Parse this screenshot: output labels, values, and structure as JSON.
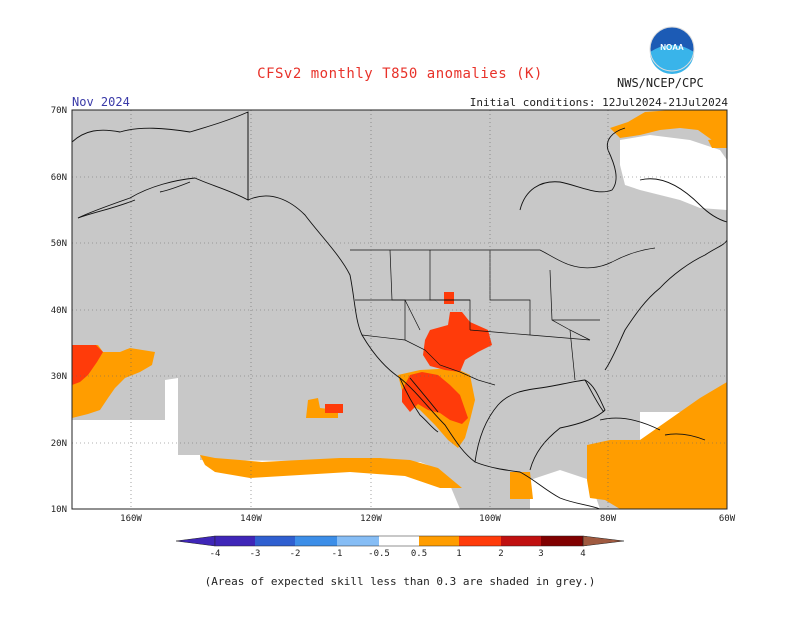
{
  "title": "CFSv2 monthly T850 anomalies (K)",
  "month": "Nov 2024",
  "org": "NWS/NCEP/CPC",
  "initial_conditions": "Initial conditions: 12Jul2024-21Jul2024",
  "logo_text": "NOAA",
  "note": "(Areas of expected skill less than 0.3 are shaded in grey.)",
  "lat_labels": [
    "70N",
    "60N",
    "50N",
    "40N",
    "30N",
    "20N",
    "10N"
  ],
  "lon_labels": [
    "160W",
    "140W",
    "120W",
    "100W",
    "80W",
    "60W"
  ],
  "colorbar_labels": [
    "-4",
    "-3",
    "-2",
    "-1",
    "-0.5",
    "0.5",
    "1",
    "2",
    "3",
    "4"
  ],
  "colors": {
    "low_skill": "#c8c8c8",
    "no_data": "#ffffff",
    "c_-4": "#3f26b8",
    "c_-3": "#2f5fd0",
    "c_-2": "#3c8ee8",
    "c_-1": "#86bdf5",
    "c_-0.5": "#ffffff",
    "c_0.5": "#ff9d00",
    "c_1": "#ff3b0a",
    "c_2": "#c01010",
    "c_3": "#800000",
    "c_4": "#c8a090",
    "c_extra": "#a05a40",
    "title": "#e8322a",
    "month": "#3a3aa8"
  },
  "regions": [
    {
      "name": "warm-0.5-1-pacific-southwest",
      "level": "0.5-1"
    },
    {
      "name": "warm-1-2-southwest-us",
      "level": "1-2"
    },
    {
      "name": "warm-1-2-northern-mexico",
      "level": "1-2"
    },
    {
      "name": "warm-0.5-1-eastern-pacific-band",
      "level": "0.5-1"
    },
    {
      "name": "warm-0.5-1-caribbean",
      "level": "0.5-1"
    },
    {
      "name": "warm-0.5-1-hudson-strait",
      "level": "0.5-1"
    }
  ]
}
